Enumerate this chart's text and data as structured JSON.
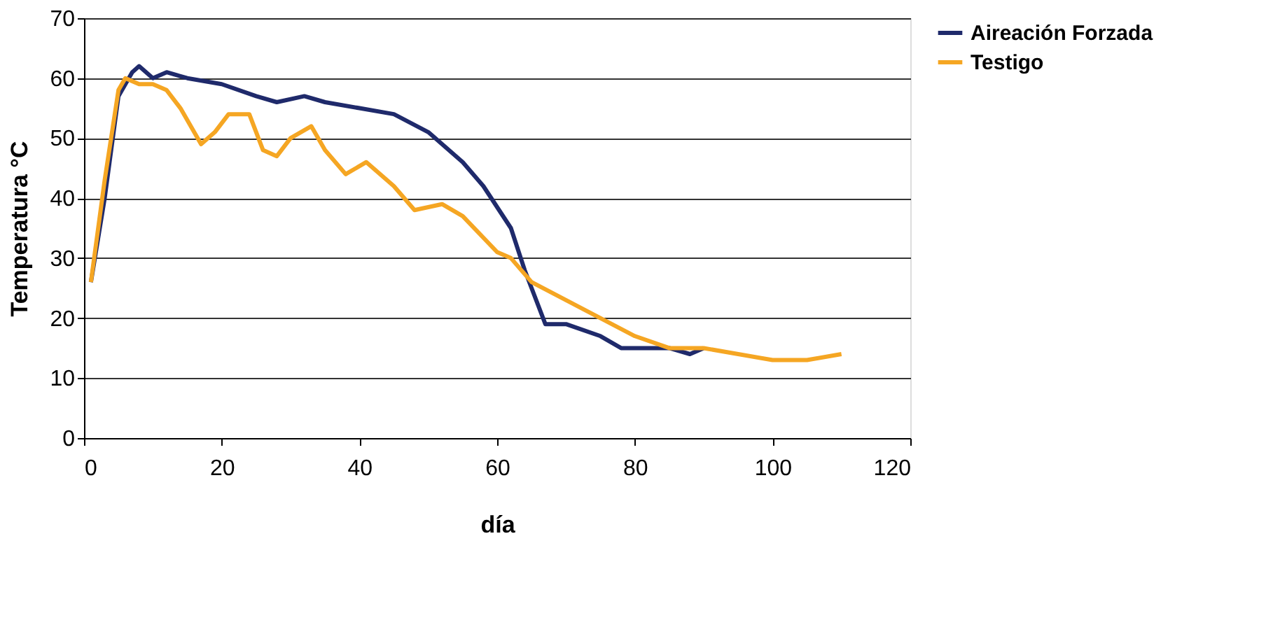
{
  "chart_data": {
    "type": "line",
    "xlabel": "día",
    "ylabel": "Temperatura °C",
    "xlim": [
      0,
      120
    ],
    "xticks": [
      0,
      20,
      40,
      60,
      80,
      100,
      120
    ],
    "ylim": [
      0,
      70
    ],
    "yticks": [
      0,
      10,
      20,
      30,
      40,
      50,
      60,
      70
    ],
    "grid": "y",
    "legend": "right",
    "series": [
      {
        "name": "Aireación Forzada",
        "color": "#1f2a6b",
        "x": [
          1,
          3,
          5,
          7,
          8,
          10,
          12,
          15,
          20,
          25,
          28,
          32,
          35,
          40,
          45,
          50,
          55,
          58,
          62,
          64,
          67,
          70,
          75,
          78,
          85,
          88,
          90
        ],
        "values": [
          26,
          40,
          57,
          61,
          62,
          60,
          61,
          60,
          59,
          57,
          56,
          57,
          56,
          55,
          54,
          51,
          46,
          42,
          35,
          28,
          19,
          19,
          17,
          15,
          15,
          14,
          15
        ]
      },
      {
        "name": "Testigo",
        "color": "#f5a623",
        "x": [
          1,
          3,
          5,
          6,
          8,
          10,
          12,
          14,
          17,
          19,
          21,
          24,
          26,
          28,
          30,
          33,
          35,
          38,
          41,
          45,
          48,
          52,
          55,
          60,
          62,
          65,
          70,
          75,
          80,
          85,
          90,
          95,
          100,
          105,
          110
        ],
        "values": [
          26,
          43,
          58,
          60,
          59,
          59,
          58,
          55,
          49,
          51,
          54,
          54,
          48,
          47,
          50,
          52,
          48,
          44,
          46,
          42,
          38,
          39,
          37,
          31,
          30,
          26,
          23,
          20,
          17,
          15,
          15,
          14,
          13,
          13,
          14
        ]
      }
    ]
  }
}
